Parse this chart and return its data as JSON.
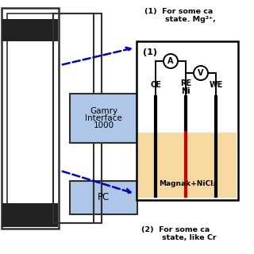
{
  "bg_color": "#ffffff",
  "gamry_box_color": "#aec6e8",
  "pc_box_color": "#aec6e8",
  "electrolyte_color": "#f5d9a0",
  "electrode_color": "#000000",
  "re_color": "#cc0000",
  "wire_color": "#303030",
  "dashed_color": "#0000bb",
  "text_color": "#000000",
  "gamry_text": [
    "Gamry",
    "Interface",
    "1000"
  ],
  "pc_text": "PC",
  "cell_label": "(1)",
  "ce_label": "CE",
  "re_label": "RE\nNi",
  "we_label": "WE",
  "electrolyte_label": "Magnak+NiCl₂",
  "ammeter_label": "A",
  "voltmeter_label": "V",
  "note1": "(1)  For some ca\n        state. Mg²⁺,",
  "note2": "(2)  For some ca\n        state, like Cr",
  "figsize": [
    3.2,
    3.2
  ],
  "dpi": 100
}
